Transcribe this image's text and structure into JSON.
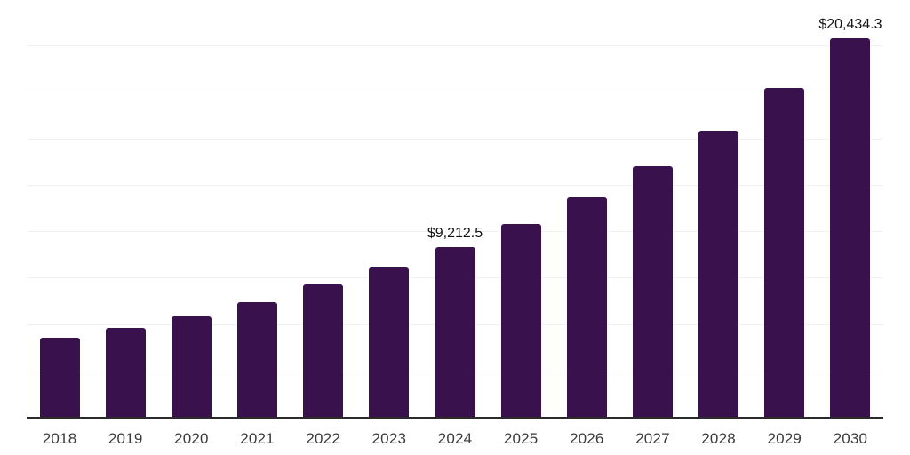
{
  "chart_data": {
    "type": "bar",
    "title": "",
    "xlabel": "",
    "ylabel": "",
    "categories": [
      "2018",
      "2019",
      "2020",
      "2021",
      "2022",
      "2023",
      "2024",
      "2025",
      "2026",
      "2027",
      "2028",
      "2029",
      "2030"
    ],
    "values": [
      4290,
      4840,
      5480,
      6240,
      7200,
      8070,
      9212.5,
      10460,
      11850,
      13550,
      15460,
      17770,
      20434.3
    ],
    "data_labels": [
      {
        "category": "2024",
        "text": "$9,212.5"
      },
      {
        "category": "2030",
        "text": "$20,434.3"
      }
    ],
    "ylim": [
      0,
      22500
    ],
    "gridline_step": 2500,
    "grid": true,
    "legend": false,
    "y_axis_labels_visible": false,
    "colors": {
      "bar": "#38114d",
      "axis_line": "#2b2b2b",
      "gridline": "#f2f2f2",
      "tick_label": "#3a3a3a",
      "data_label": "#111111",
      "background": "#ffffff"
    }
  }
}
